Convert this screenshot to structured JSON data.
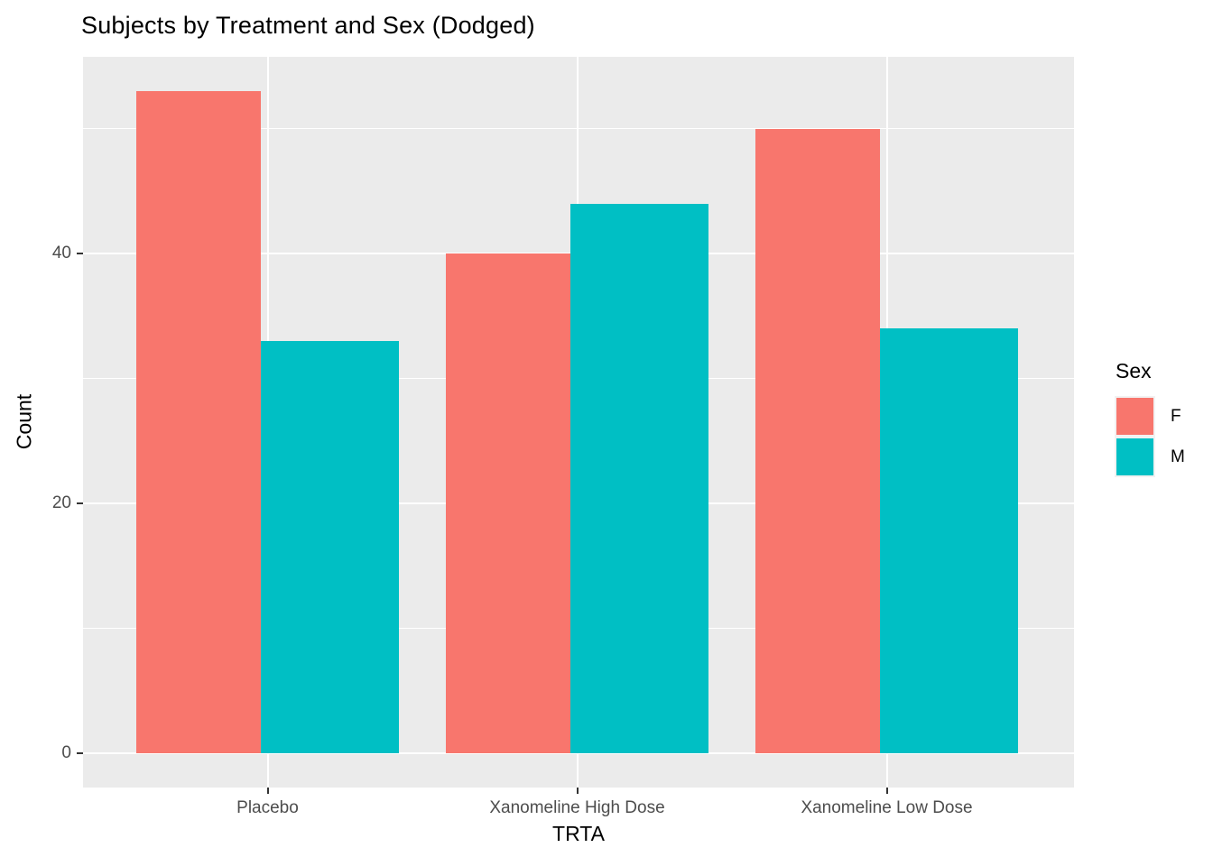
{
  "title": "Subjects by Treatment and Sex (Dodged)",
  "chart_data": {
    "type": "bar",
    "mode": "dodged",
    "title": "Subjects by Treatment and Sex (Dodged)",
    "xlabel": "TRTA",
    "ylabel": "Count",
    "categories": [
      "Placebo",
      "Xanomeline High Dose",
      "Xanomeline Low Dose"
    ],
    "series": [
      {
        "name": "F",
        "color": "#F8766D",
        "values": [
          53,
          40,
          50
        ]
      },
      {
        "name": "M",
        "color": "#00BFC4",
        "values": [
          33,
          44,
          34
        ]
      }
    ],
    "y_major_ticks": [
      0,
      20,
      40
    ],
    "y_minor_ticks": [
      10,
      30,
      50
    ],
    "ylim": [
      0,
      55.7
    ],
    "grid": "on",
    "legend_title": "Sex",
    "legend_position": "right",
    "panel_bg": "#EBEBEB",
    "grid_color": "#FFFFFF",
    "axis_text_color": "#4D4D4D",
    "tick_mark_color": "#333333"
  }
}
